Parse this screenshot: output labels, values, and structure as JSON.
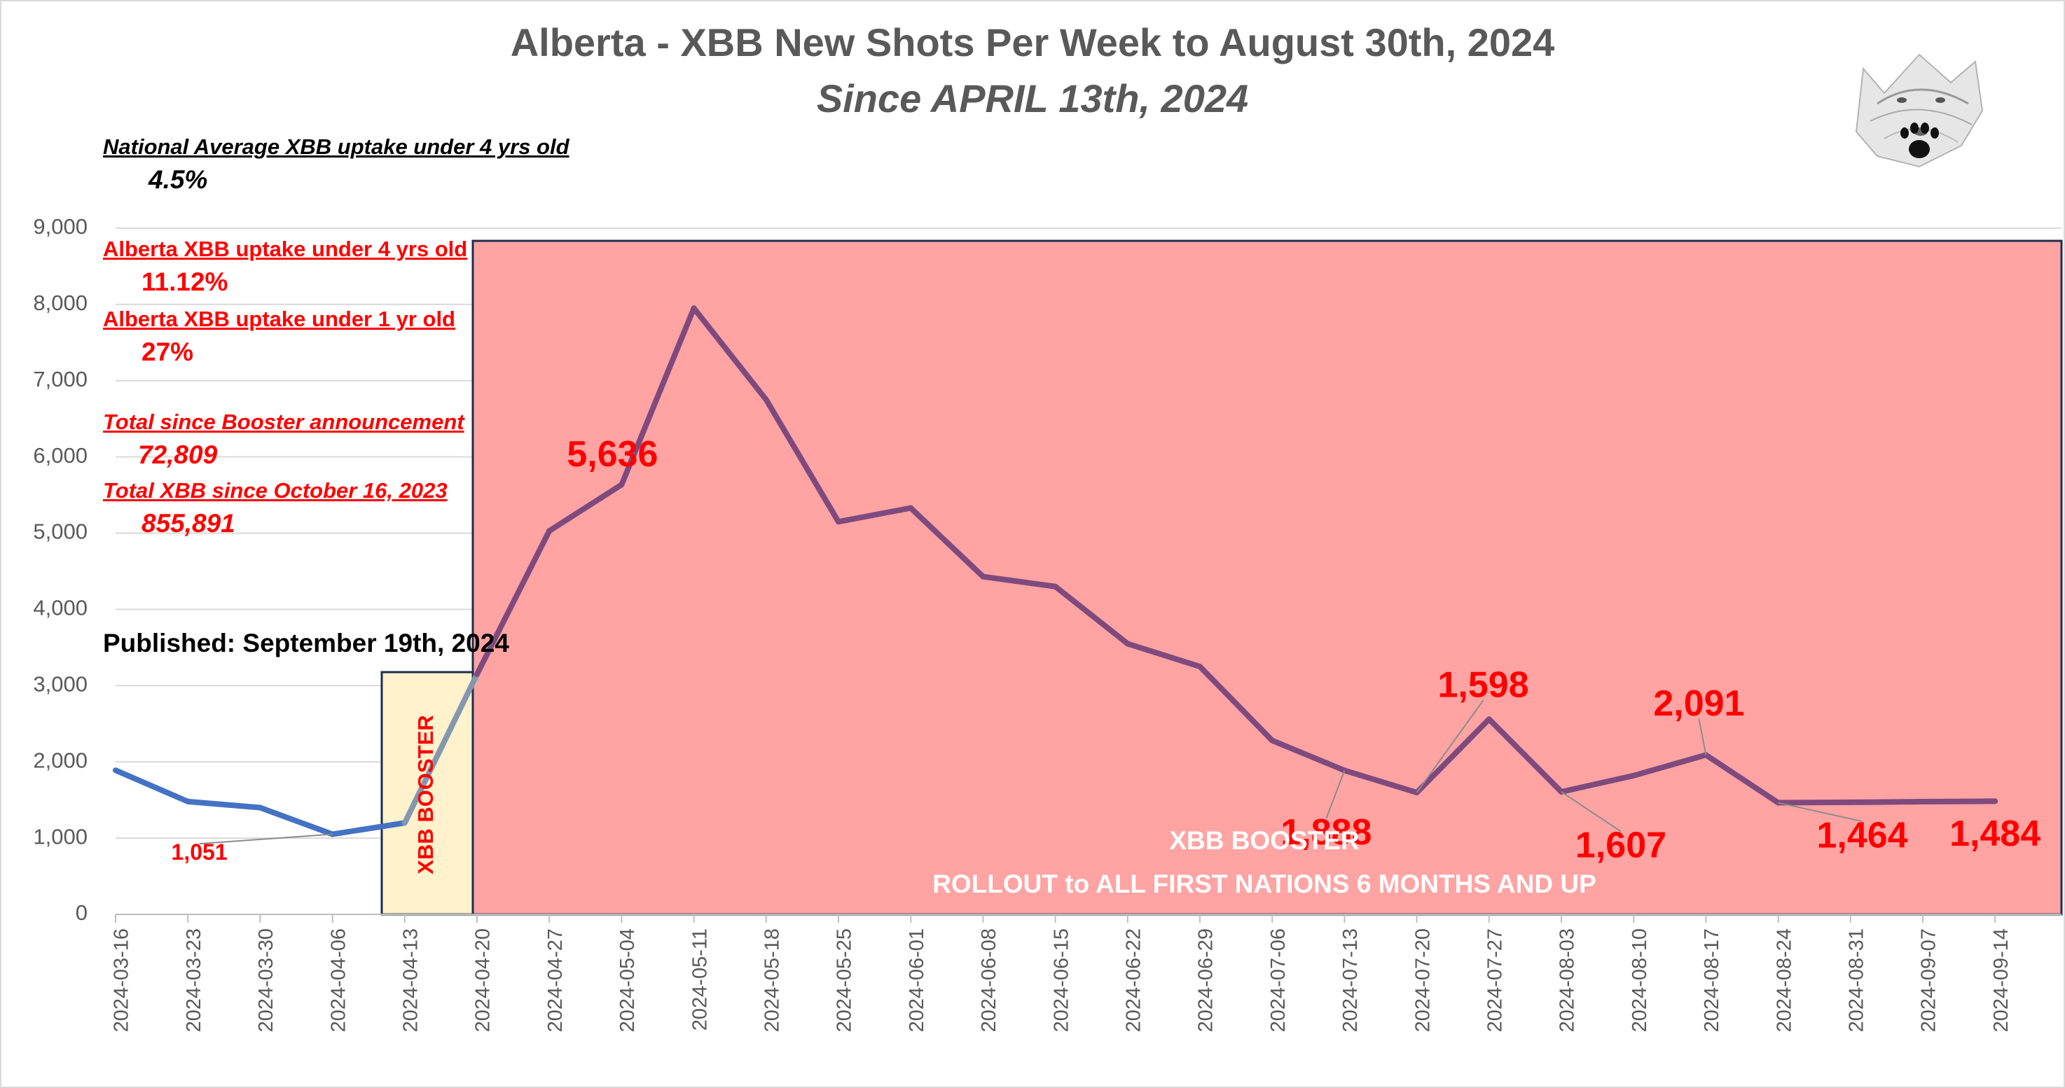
{
  "header": {
    "title": "Alberta - XBB New Shots Per Week to August 30th, 2024",
    "subtitle": "Since APRIL 13th, 2024"
  },
  "notes": {
    "national_label": "National Average XBB uptake under 4 yrs old",
    "national_value": "4.5%",
    "ab_under4_label": "Alberta XBB uptake under 4 yrs old",
    "ab_under4_value": "11.12%",
    "ab_under1_label": "Alberta XBB uptake under 1 yr old",
    "ab_under1_value": "27%",
    "total_booster_label": "Total since Booster announcement",
    "total_booster_value": "72,809",
    "total_xbb_label": "Total XBB since October 16, 2023",
    "total_xbb_value": "855,891",
    "published": "Published: September 19th, 2024"
  },
  "overlays": {
    "booster_box_text": "XBB BOOSTER",
    "rollout_line1": "XBB BOOSTER",
    "rollout_line2": "ROLLOUT to ALL FIRST NATIONS 6 MONTHS AND UP"
  },
  "colors": {
    "pre_line": "#4472c4",
    "transition_line": "#8497b0",
    "post_line": "#7e4a7e",
    "rollout_fill": "#ffa3a3",
    "booster_fill": "#fff2cc",
    "box_border": "#1f2d4d",
    "label_red": "#ff0000",
    "grid": "#d9d9d9",
    "axis_text": "#595959"
  },
  "chart_data": {
    "type": "line",
    "title": "Alberta - XBB New Shots Per Week to August 30th, 2024",
    "subtitle": "Since APRIL 13th, 2024",
    "xlabel": "",
    "ylabel": "",
    "ylim": [
      0,
      9000
    ],
    "yticks": [
      0,
      1000,
      2000,
      3000,
      4000,
      5000,
      6000,
      7000,
      8000,
      9000
    ],
    "ytick_labels": [
      "0",
      "1,000",
      "2,000",
      "3,000",
      "4,000",
      "5,000",
      "6,000",
      "7,000",
      "8,000",
      "9,000"
    ],
    "grid": true,
    "categories": [
      "2024-03-16",
      "2024-03-23",
      "2024-03-30",
      "2024-04-06",
      "2024-04-13",
      "2024-04-20",
      "2024-04-27",
      "2024-05-04",
      "2024-05-11",
      "2024-05-18",
      "2024-05-25",
      "2024-06-01",
      "2024-06-08",
      "2024-06-15",
      "2024-06-22",
      "2024-06-29",
      "2024-07-06",
      "2024-07-13",
      "2024-07-20",
      "2024-07-27",
      "2024-08-03",
      "2024-08-10",
      "2024-08-17",
      "2024-08-24",
      "2024-08-31",
      "2024-09-07",
      "2024-09-14"
    ],
    "values": [
      1890,
      1480,
      1400,
      1051,
      1200,
      3150,
      5030,
      5636,
      7950,
      6750,
      5150,
      5330,
      4430,
      4300,
      3550,
      3250,
      2280,
      1888,
      1598,
      2560,
      1607,
      1820,
      2091,
      1464,
      1470,
      1478,
      1484
    ],
    "data_labels": [
      {
        "text": "1,051",
        "index": 3
      },
      {
        "text": "5,636",
        "index": 7
      },
      {
        "text": "1,888",
        "index": 17
      },
      {
        "text": "1,598",
        "index": 18
      },
      {
        "text": "1,607",
        "index": 20
      },
      {
        "text": "2,091",
        "index": 22
      },
      {
        "text": "1,464",
        "index": 23
      },
      {
        "text": "1,484",
        "index": 26
      }
    ]
  }
}
